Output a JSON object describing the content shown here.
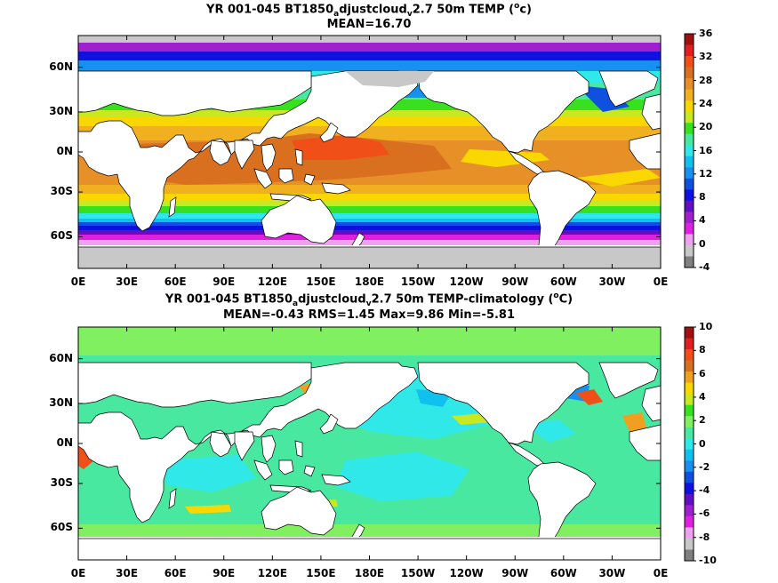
{
  "panels": [
    {
      "title_line1": {
        "a": "YR 001-045 BT1850",
        "sub1": "a",
        "b": "djustcloud",
        "sub2": "v",
        "c": "2.7 50m TEMP (",
        "sup": "o",
        "d": "c)"
      },
      "title_line2": "MEAN=16.70",
      "colorbar": {
        "labels": [
          "36",
          "32",
          "28",
          "24",
          "20",
          "16",
          "12",
          "8",
          "4",
          "0",
          "-4"
        ],
        "colors": [
          "#a01010",
          "#e02020",
          "#f05018",
          "#d87020",
          "#e89028",
          "#f0b020",
          "#f8d800",
          "#c8e820",
          "#38e020",
          "#48e8a0",
          "#30e8e8",
          "#10c0f0",
          "#1890f0",
          "#1050e0",
          "#1010e0",
          "#6010c0",
          "#a020d0",
          "#e020e0",
          "#f0a0f0",
          "#c8c8c8",
          "#808080"
        ]
      },
      "x_ticks": [
        "0E",
        "30E",
        "60E",
        "90E",
        "120E",
        "150E",
        "180E",
        "150W",
        "120W",
        "90W",
        "60W",
        "30W",
        "0E"
      ],
      "y_ticks": [
        "60N",
        "30N",
        "0N",
        "30S",
        "60S"
      ]
    },
    {
      "title_line1": {
        "a": "YR 001-045 BT1850",
        "sub1": "a",
        "b": "djustcloud",
        "sub2": "v",
        "c": "2.7 50m TEMP-climatology (",
        "sup": "o",
        "d": "C)"
      },
      "title_line2": "MEAN=-0.43   RMS=1.45   Max=9.86   Min=-5.81",
      "colorbar": {
        "labels": [
          "10",
          "8",
          "6",
          "4",
          "2",
          "0",
          "-2",
          "-4",
          "-6",
          "-8",
          "-10"
        ],
        "colors": [
          "#a01010",
          "#e02020",
          "#f05018",
          "#d87020",
          "#f0a020",
          "#f8d800",
          "#c8e820",
          "#38e020",
          "#80f060",
          "#48e8a0",
          "#30e8e8",
          "#10c0f0",
          "#1890f0",
          "#1050e0",
          "#1010e0",
          "#6010c0",
          "#a020d0",
          "#e020e0",
          "#f0a0f0",
          "#c8c8c8",
          "#808080"
        ]
      },
      "x_ticks": [
        "0E",
        "30E",
        "60E",
        "90E",
        "120E",
        "150E",
        "180E",
        "150W",
        "120W",
        "90W",
        "60W",
        "30W",
        "0E"
      ],
      "y_ticks": [
        "60N",
        "30N",
        "0N",
        "30S",
        "60S"
      ]
    }
  ]
}
